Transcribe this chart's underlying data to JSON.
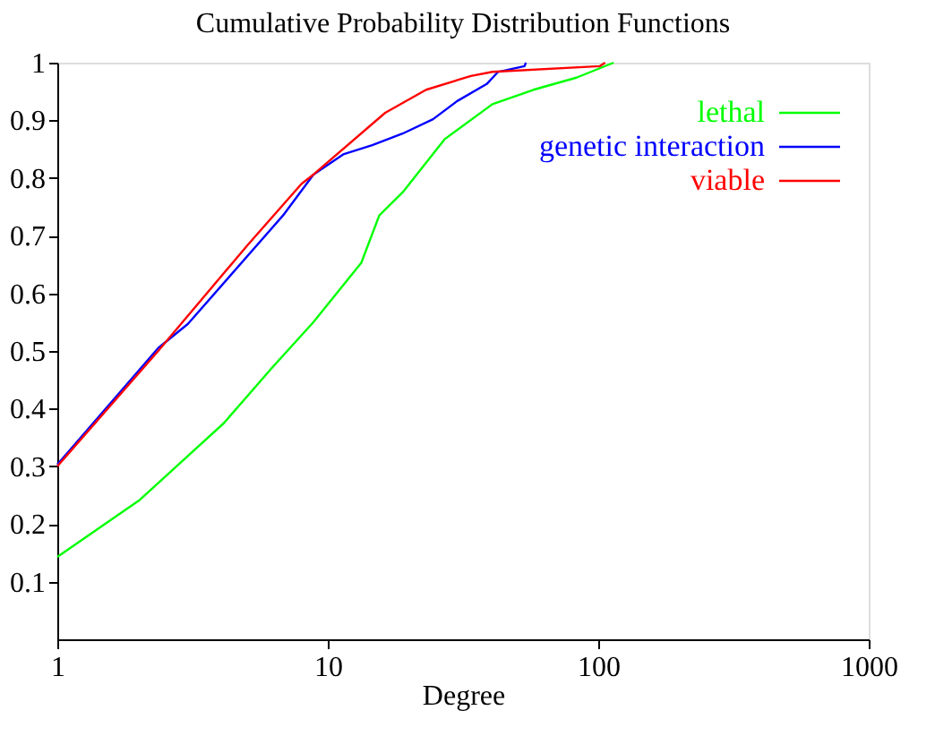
{
  "chart_data": {
    "type": "line",
    "title": "Cumulative Probability Distribution Functions",
    "xlabel": "Degree",
    "log": "x",
    "xlim": [
      1,
      1000
    ],
    "xticks": [
      1,
      10,
      100,
      1000
    ],
    "ylim": [
      0,
      1
    ],
    "yticks": [
      0.1,
      0.2,
      0.3,
      0.4,
      0.5,
      0.6,
      0.7,
      0.8,
      0.9,
      1
    ],
    "grid": false,
    "legend": "top right",
    "line_style": "solid",
    "marker": "none",
    "series": [
      {
        "name": "lethal",
        "color": "#00ff00",
        "x": [
          1,
          2.02,
          4.13,
          6.2,
          8.85,
          13.3,
          15.5,
          18.9,
          27,
          40.6,
          57.6,
          83,
          114
        ],
        "values": [
          0.143,
          0.242,
          0.375,
          0.47,
          0.55,
          0.653,
          0.735,
          0.775,
          0.867,
          0.928,
          0.953,
          0.974,
          1
        ]
      },
      {
        "name": "genetic interaction",
        "color": "#0000ff",
        "x": [
          1,
          2.36,
          3.04,
          6.83,
          8.85,
          11.4,
          14.6,
          18.9,
          24.5,
          30,
          38.7,
          42.6,
          53.4,
          54
        ],
        "values": [
          0.303,
          0.505,
          0.547,
          0.735,
          0.806,
          0.841,
          0.857,
          0.877,
          0.902,
          0.933,
          0.963,
          0.984,
          0.994,
          1
        ]
      },
      {
        "name": "viable",
        "color": "#ff0000",
        "x": [
          1,
          2.36,
          5.06,
          8.0,
          8.85,
          16.3,
          23.1,
          33.8,
          40.6,
          101.5,
          106
        ],
        "values": [
          0.3,
          0.5,
          0.684,
          0.79,
          0.806,
          0.913,
          0.953,
          0.977,
          0.984,
          0.994,
          1
        ]
      }
    ]
  }
}
